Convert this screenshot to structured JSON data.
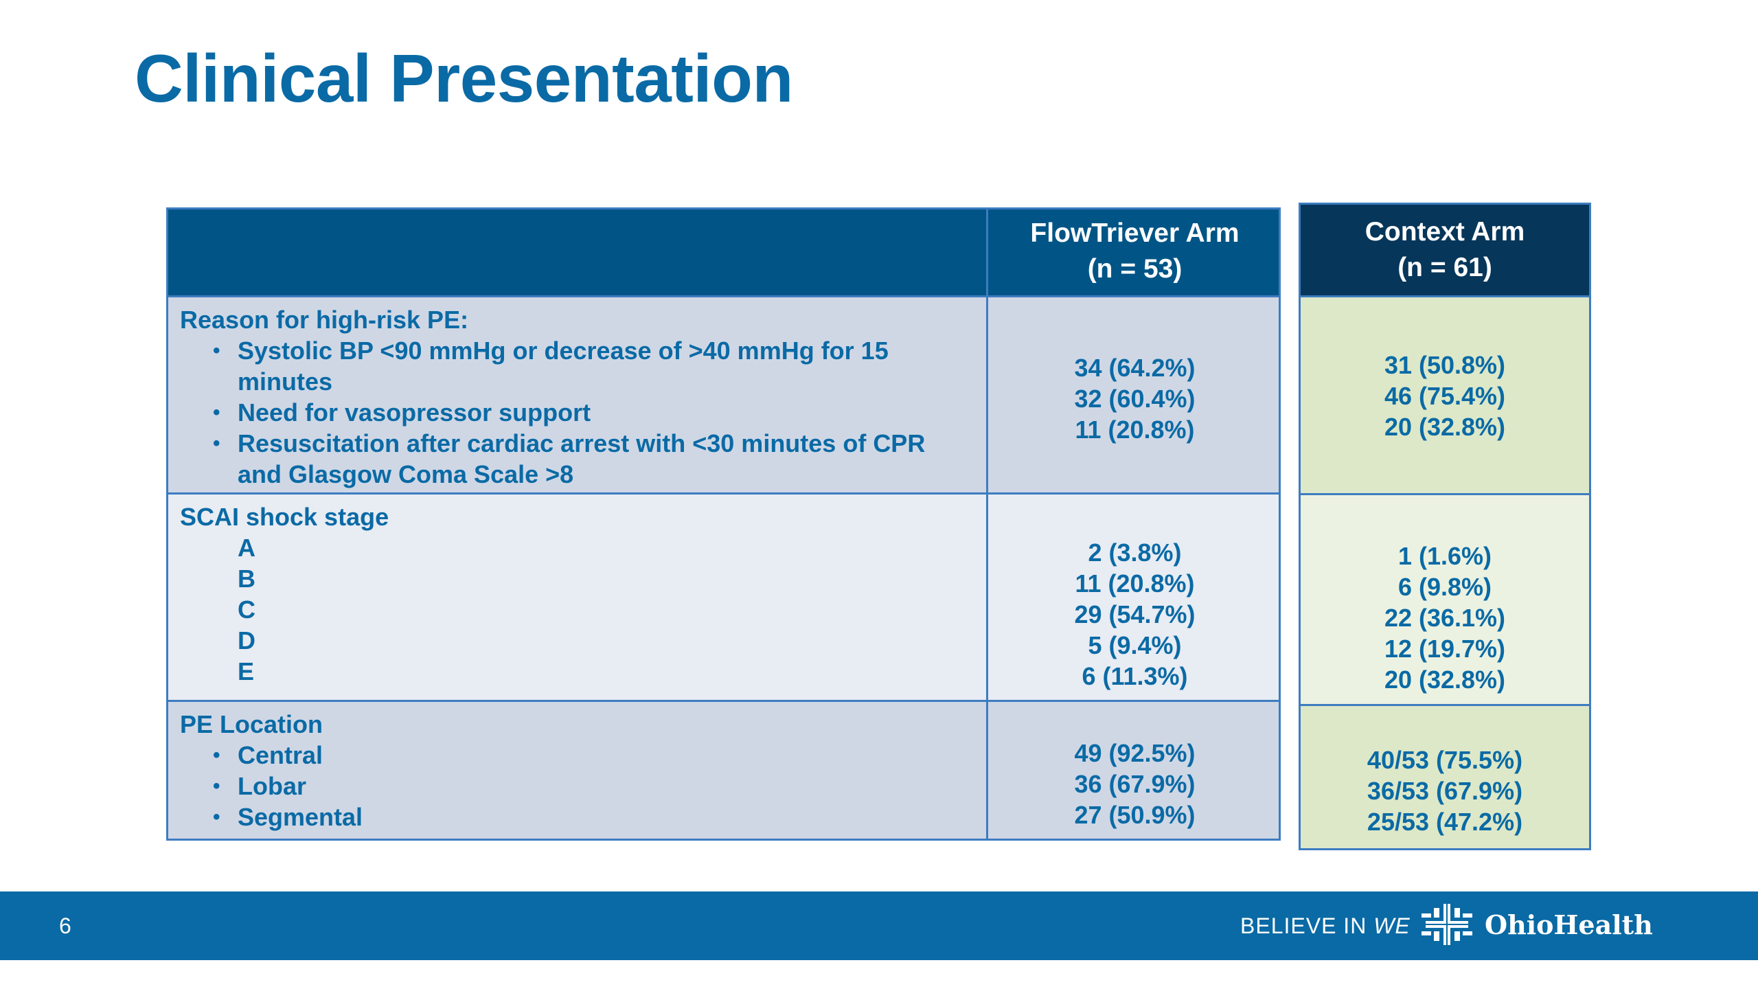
{
  "slide": {
    "title": "Clinical Presentation",
    "page_number": "6"
  },
  "table": {
    "flowtriever_header": [
      "FlowTriever Arm",
      "(n = 53)"
    ],
    "rows": [
      {
        "heading": "Reason for high-risk PE:",
        "items": [
          [
            "Systolic BP <90 mmHg or decrease of >40 mmHg for 15",
            "minutes"
          ],
          [
            "Need for vasopressor support"
          ],
          [
            "Resuscitation after cardiac arrest with <30 minutes of CPR",
            "and Glasgow Coma Scale >8"
          ]
        ],
        "flowtriever_values": [
          "34 (64.2%)",
          "32 (60.4%)",
          "11 (20.8%)"
        ]
      },
      {
        "heading": "SCAI shock stage",
        "items": [
          "A",
          "B",
          "C",
          "D",
          "E"
        ],
        "flowtriever_values": [
          "2 (3.8%)",
          "11 (20.8%)",
          "29 (54.7%)",
          "5 (9.4%)",
          "6 (11.3%)"
        ]
      },
      {
        "heading": "PE Location",
        "items": [
          "Central",
          "Lobar",
          "Segmental"
        ],
        "flowtriever_values": [
          "49 (92.5%)",
          "36 (67.9%)",
          "27 (50.9%)"
        ]
      }
    ]
  },
  "context_table": {
    "header": [
      "Context Arm",
      "(n = 61)"
    ],
    "values": [
      [
        "31 (50.8%)",
        "46 (75.4%)",
        "20 (32.8%)"
      ],
      [
        "1 (1.6%)",
        "6 (9.8%)",
        "22 (36.1%)",
        "12 (19.7%)",
        "20 (32.8%)"
      ],
      [
        "40/53 (75.5%)",
        "36/53 (67.9%)",
        "25/53 (47.2%)"
      ]
    ]
  },
  "footer": {
    "tagline_prefix": "BELIEVE IN",
    "tagline_emphasis": "WE",
    "logo_text": "OhioHealth",
    "logo_icon": "ohiohealth-mark-icon"
  },
  "colors": {
    "title_blue": "#0a6aa5",
    "header_blue": "#005586",
    "context_header_navy": "#06365a",
    "row_blue_gray": "#cfd7e5",
    "row_light": "#e8ecf3",
    "context_green": "#dde8c8",
    "context_green_light": "#ecf2e1",
    "footer_blue": "#0a6aa5"
  }
}
